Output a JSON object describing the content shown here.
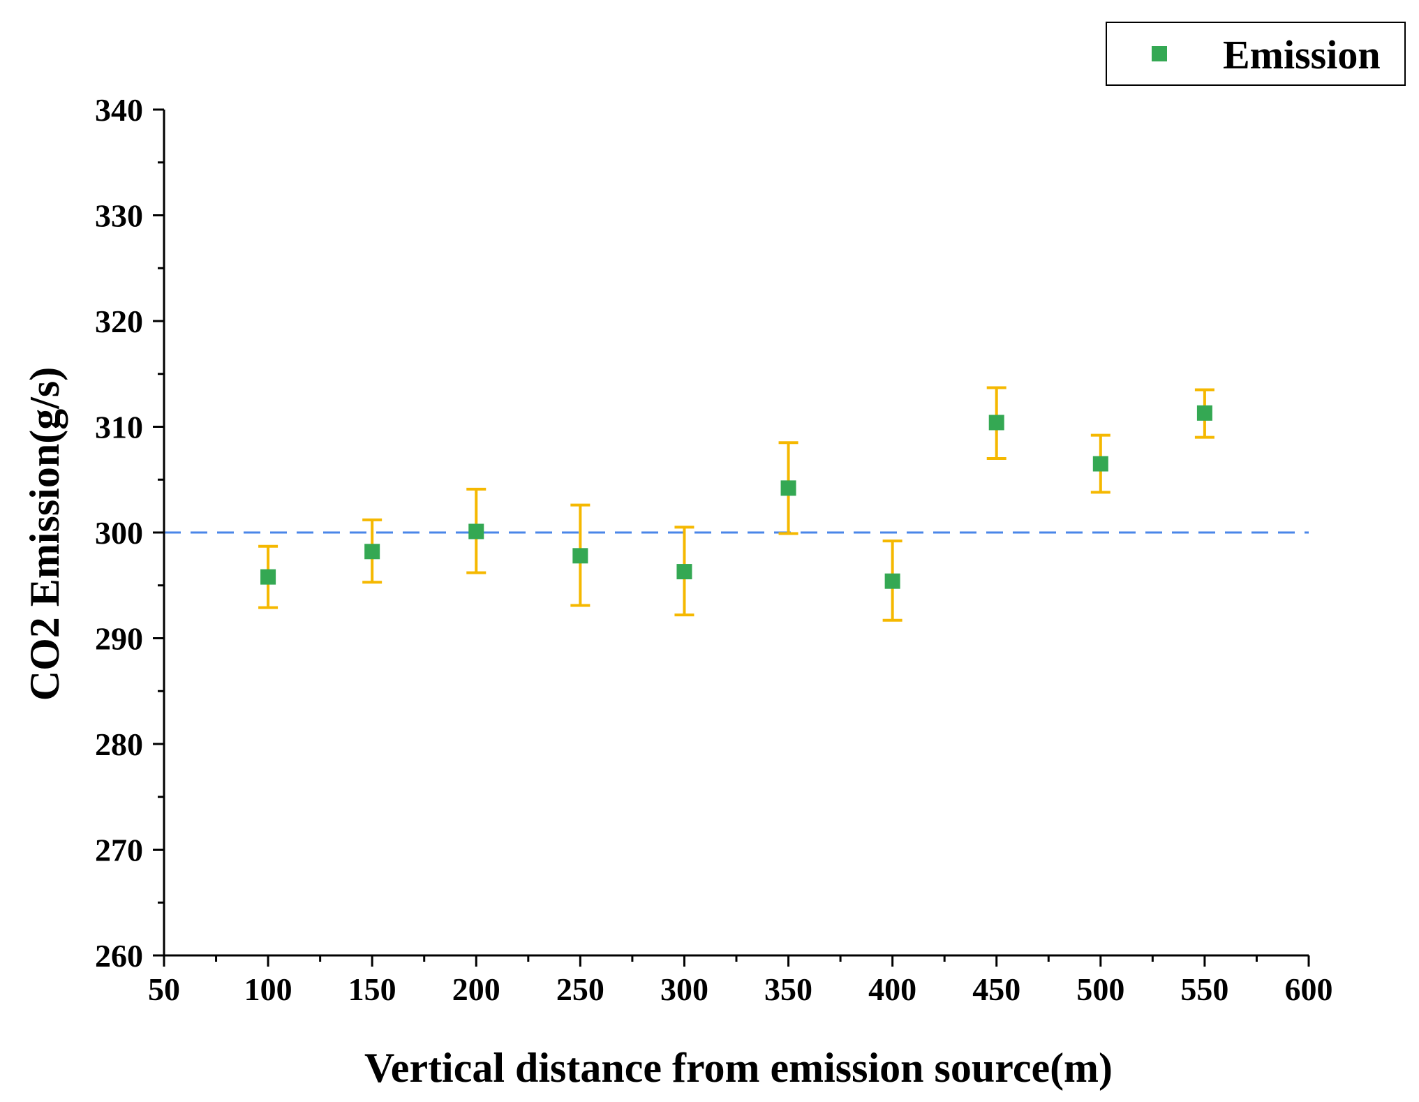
{
  "chart_data": {
    "type": "scatter",
    "title": "",
    "xlabel": "Vertical distance from emission source(m)",
    "ylabel": "CO2 Emission(g/s)",
    "xlim": [
      50,
      600
    ],
    "ylim": [
      260,
      340
    ],
    "x_ticks": [
      50,
      100,
      150,
      200,
      250,
      300,
      350,
      400,
      450,
      500,
      550,
      600
    ],
    "y_ticks": [
      260,
      270,
      280,
      290,
      300,
      310,
      320,
      330,
      340
    ],
    "grid": false,
    "legend_position": "top-right",
    "reference_line": {
      "y": 300,
      "style": "dashed",
      "color": "#4a86e8"
    },
    "series": [
      {
        "name": "Emission",
        "marker": "square",
        "color": "#34a853",
        "error_bar_color": "#f5b800",
        "x": [
          100,
          150,
          200,
          250,
          300,
          350,
          400,
          450,
          500,
          550
        ],
        "y": [
          295.8,
          298.2,
          300.1,
          297.8,
          296.3,
          304.2,
          295.4,
          310.4,
          306.5,
          311.3
        ],
        "y_err_low": [
          292.9,
          295.3,
          296.2,
          293.1,
          292.2,
          299.9,
          291.7,
          307.0,
          303.8,
          309.0
        ],
        "y_err_high": [
          298.7,
          301.2,
          304.1,
          302.6,
          300.5,
          308.5,
          299.2,
          313.7,
          309.2,
          313.5
        ]
      }
    ]
  }
}
